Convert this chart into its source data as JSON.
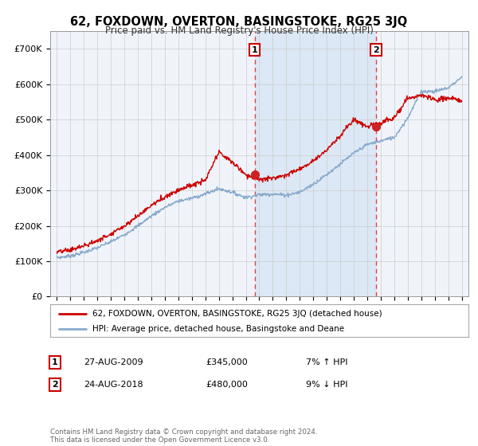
{
  "title": "62, FOXDOWN, OVERTON, BASINGSTOKE, RG25 3JQ",
  "subtitle": "Price paid vs. HM Land Registry's House Price Index (HPI)",
  "legend_line1": "62, FOXDOWN, OVERTON, BASINGSTOKE, RG25 3JQ (detached house)",
  "legend_line2": "HPI: Average price, detached house, Basingstoke and Deane",
  "annotation1_label": "1",
  "annotation1_date": "27-AUG-2009",
  "annotation1_price": "£345,000",
  "annotation1_hpi": "7% ↑ HPI",
  "annotation1_year": 2009.65,
  "annotation1_value": 345000,
  "annotation2_label": "2",
  "annotation2_date": "24-AUG-2018",
  "annotation2_price": "£480,000",
  "annotation2_hpi": "9% ↓ HPI",
  "annotation2_year": 2018.65,
  "annotation2_value": 480000,
  "ylim": [
    0,
    750000
  ],
  "yticks": [
    0,
    100000,
    200000,
    300000,
    400000,
    500000,
    600000,
    700000
  ],
  "ytick_labels": [
    "£0",
    "£100K",
    "£200K",
    "£300K",
    "£400K",
    "£500K",
    "£600K",
    "£700K"
  ],
  "background_color": "#ffffff",
  "plot_bg_color": "#f0f4fa",
  "shade_color": "#dce8f5",
  "grid_color": "#cccccc",
  "line1_color": "#cc0000",
  "line2_color": "#88aacc",
  "vline_color": "#dd4444",
  "footer": "Contains HM Land Registry data © Crown copyright and database right 2024.\nThis data is licensed under the Open Government Licence v3.0.",
  "hpi_years": [
    1995,
    1996,
    1997,
    1998,
    1999,
    2000,
    2001,
    2002,
    2003,
    2004,
    2005,
    2006,
    2007,
    2008,
    2009,
    2010,
    2011,
    2012,
    2013,
    2014,
    2015,
    2016,
    2017,
    2018,
    2019,
    2020,
    2021,
    2022,
    2023,
    2024,
    2025
  ],
  "hpi_values": [
    110000,
    115000,
    125000,
    138000,
    155000,
    175000,
    200000,
    228000,
    252000,
    270000,
    278000,
    290000,
    305000,
    295000,
    280000,
    288000,
    290000,
    287000,
    295000,
    318000,
    345000,
    375000,
    405000,
    430000,
    440000,
    450000,
    505000,
    580000,
    580000,
    590000,
    620000
  ],
  "price_years": [
    1995,
    1996,
    1997,
    1998,
    1999,
    2000,
    2001,
    2002,
    2003,
    2004,
    2005,
    2006,
    2007,
    2008,
    2009,
    2010,
    2011,
    2012,
    2013,
    2014,
    2015,
    2016,
    2017,
    2018,
    2019,
    2020,
    2021,
    2022,
    2023,
    2024,
    2025
  ],
  "price_values": [
    125000,
    132000,
    143000,
    158000,
    178000,
    200000,
    228000,
    258000,
    282000,
    302000,
    315000,
    328000,
    408000,
    380000,
    345000,
    330000,
    335000,
    345000,
    360000,
    385000,
    415000,
    455000,
    500000,
    480000,
    490000,
    505000,
    560000,
    570000,
    555000,
    560000,
    555000
  ]
}
